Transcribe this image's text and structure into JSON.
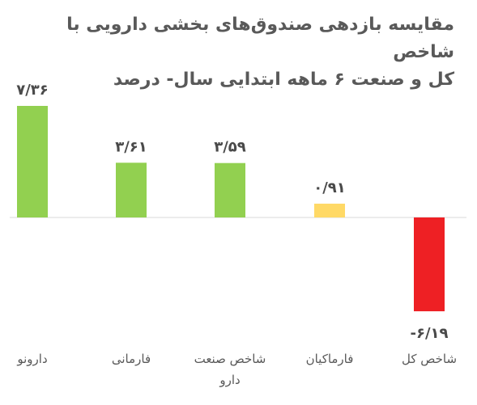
{
  "chart_data": {
    "type": "bar",
    "title_line1": "مقایسه بازدهی صندوق‌های بخشی دارویی با شاخص",
    "title_line2": "کل و صنعت ۶ ماهه ابتدایی سال- درصد",
    "categories": [
      "دارونو",
      "فارمانی",
      "شاخص صنعت دارو",
      "فارماکیان",
      "شاخص کل"
    ],
    "category_lines": [
      [
        "دارونو"
      ],
      [
        "فارمانی"
      ],
      [
        "شاخص صنعت",
        "دارو"
      ],
      [
        "فارماکیان"
      ],
      [
        "شاخص کل"
      ]
    ],
    "values": [
      7.36,
      3.61,
      3.59,
      0.91,
      -6.19
    ],
    "value_labels": [
      "۷/۳۶",
      "۳/۶۱",
      "۳/۵۹",
      "۰/۹۱",
      "-۶/۱۹"
    ],
    "colors": [
      "#92d050",
      "#92d050",
      "#92d050",
      "#ffd966",
      "#ee2024"
    ],
    "xlabel": "",
    "ylabel": "",
    "grid": false,
    "legend": "none"
  }
}
